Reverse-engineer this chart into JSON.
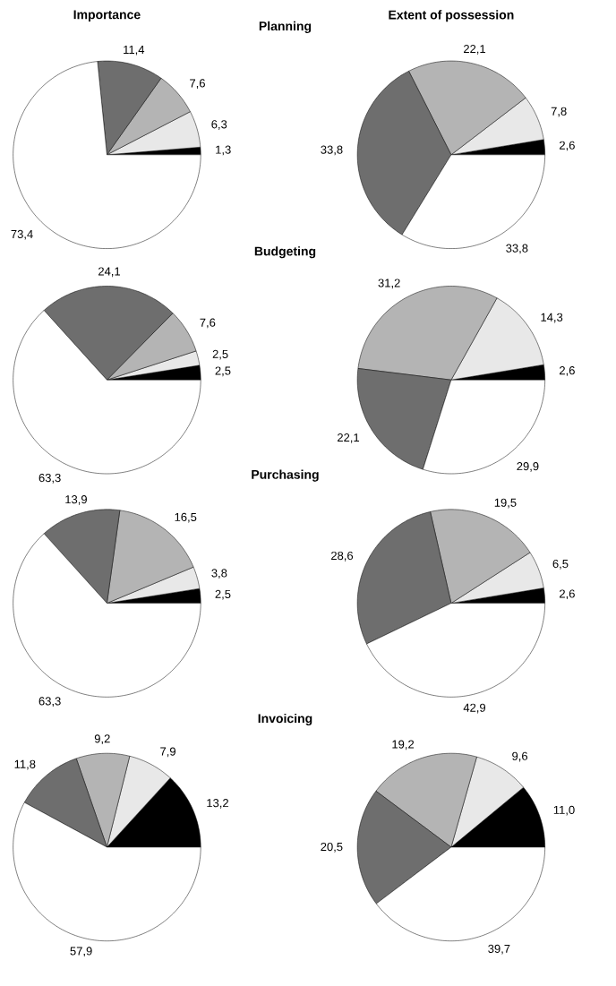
{
  "chart_data": [
    {
      "type": "pie",
      "title": "Importance",
      "subtitle": "Planning",
      "categories": [
        null,
        null,
        null,
        null,
        null
      ],
      "values": [
        1.3,
        6.3,
        7.6,
        11.4,
        73.4
      ],
      "value_labels": [
        "1,3",
        "6,3",
        "7,6",
        "11,4",
        "73,4"
      ],
      "colors": [
        "#000000",
        "#e8e8e8",
        "#b4b4b4",
        "#6e6e6e",
        "#ffffff"
      ]
    },
    {
      "type": "pie",
      "title": "Extent of possession",
      "categories": [
        null,
        null,
        null,
        null,
        null
      ],
      "values": [
        2.6,
        7.8,
        22.1,
        33.8,
        33.8
      ],
      "value_labels": [
        "2,6",
        "7,8",
        "22,1",
        "33,8",
        "33,8"
      ],
      "colors": [
        "#000000",
        "#e8e8e8",
        "#b4b4b4",
        "#6e6e6e",
        "#ffffff"
      ]
    },
    {
      "type": "pie",
      "subtitle": "Budgeting",
      "categories": [
        null,
        null,
        null,
        null,
        null
      ],
      "values": [
        2.5,
        2.5,
        7.6,
        24.1,
        63.3
      ],
      "value_labels": [
        "2,5",
        "2,5",
        "7,6",
        "24,1",
        "63,3"
      ],
      "colors": [
        "#000000",
        "#e8e8e8",
        "#b4b4b4",
        "#6e6e6e",
        "#ffffff"
      ]
    },
    {
      "type": "pie",
      "categories": [
        null,
        null,
        null,
        null,
        null
      ],
      "values": [
        2.6,
        14.3,
        31.2,
        22.1,
        29.9
      ],
      "value_labels": [
        "2,6",
        "14,3",
        "31,2",
        "22,1",
        "29,9"
      ],
      "colors": [
        "#000000",
        "#e8e8e8",
        "#b4b4b4",
        "#6e6e6e",
        "#ffffff"
      ]
    },
    {
      "type": "pie",
      "subtitle": "Purchasing",
      "categories": [
        null,
        null,
        null,
        null,
        null
      ],
      "values": [
        2.5,
        3.8,
        16.5,
        13.9,
        63.3
      ],
      "value_labels": [
        "2,5",
        "3,8",
        "16,5",
        "13,9",
        "63,3"
      ],
      "colors": [
        "#000000",
        "#e8e8e8",
        "#b4b4b4",
        "#6e6e6e",
        "#ffffff"
      ]
    },
    {
      "type": "pie",
      "categories": [
        null,
        null,
        null,
        null,
        null
      ],
      "values": [
        2.6,
        6.5,
        19.5,
        28.6,
        42.9
      ],
      "value_labels": [
        "2,6",
        "6,5",
        "19,5",
        "28,6",
        "42,9"
      ],
      "colors": [
        "#000000",
        "#e8e8e8",
        "#b4b4b4",
        "#6e6e6e",
        "#ffffff"
      ]
    },
    {
      "type": "pie",
      "subtitle": "Invoicing",
      "categories": [
        null,
        null,
        null,
        null,
        null
      ],
      "values": [
        13.2,
        7.9,
        9.2,
        11.8,
        57.9
      ],
      "value_labels": [
        "13,2",
        "7,9",
        "9,2",
        "11,8",
        "57,9"
      ],
      "colors": [
        "#000000",
        "#e8e8e8",
        "#b4b4b4",
        "#6e6e6e",
        "#ffffff"
      ]
    },
    {
      "type": "pie",
      "categories": [
        null,
        null,
        null,
        null,
        null
      ],
      "values": [
        11.0,
        9.6,
        19.2,
        20.5,
        39.7
      ],
      "value_labels": [
        "11,0",
        "9,6",
        "19,2",
        "20,5",
        "39,7"
      ],
      "colors": [
        "#000000",
        "#e8e8e8",
        "#b4b4b4",
        "#6e6e6e",
        "#ffffff"
      ]
    }
  ]
}
